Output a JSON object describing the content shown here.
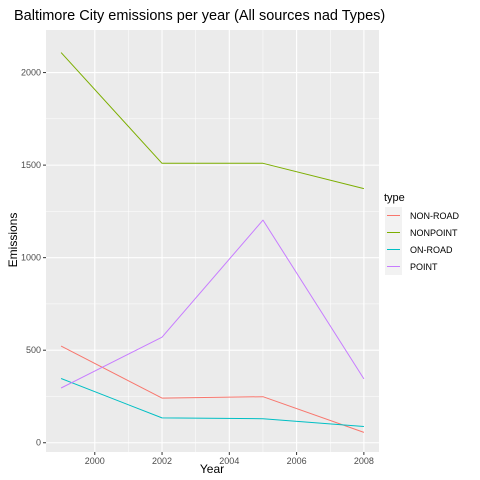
{
  "chart_data": {
    "type": "line",
    "title": "Baltimore City emissions per year (All sources nad Types)",
    "xlabel": "Year",
    "ylabel": "Emissions",
    "x": [
      1999,
      2002,
      2005,
      2008
    ],
    "x_ticks": [
      2000,
      2002,
      2004,
      2006,
      2008
    ],
    "x_tick_labels": [
      "2000",
      "2002",
      "2004",
      "2006",
      "2008"
    ],
    "y_ticks": [
      0,
      500,
      1000,
      1500,
      2000
    ],
    "y_tick_labels": [
      "0",
      "500",
      "1000",
      "1500",
      "2000"
    ],
    "xlim": [
      1998.55,
      2008.45
    ],
    "ylim": [
      -50,
      2230
    ],
    "grid": true,
    "panel_background": "#ebebeb",
    "grid_color": "#ffffff",
    "legend_title": "type",
    "legend_position": "right",
    "series": [
      {
        "name": "NON-ROAD",
        "color": "#f8766d",
        "values": [
          522,
          241,
          249,
          56
        ]
      },
      {
        "name": "NONPOINT",
        "color": "#7cae00",
        "values": [
          2108,
          1510,
          1510,
          1373
        ]
      },
      {
        "name": "ON-ROAD",
        "color": "#00bfc4",
        "values": [
          347,
          134,
          130,
          88
        ]
      },
      {
        "name": "POINT",
        "color": "#c77cff",
        "values": [
          296,
          570,
          1203,
          345
        ]
      }
    ]
  }
}
